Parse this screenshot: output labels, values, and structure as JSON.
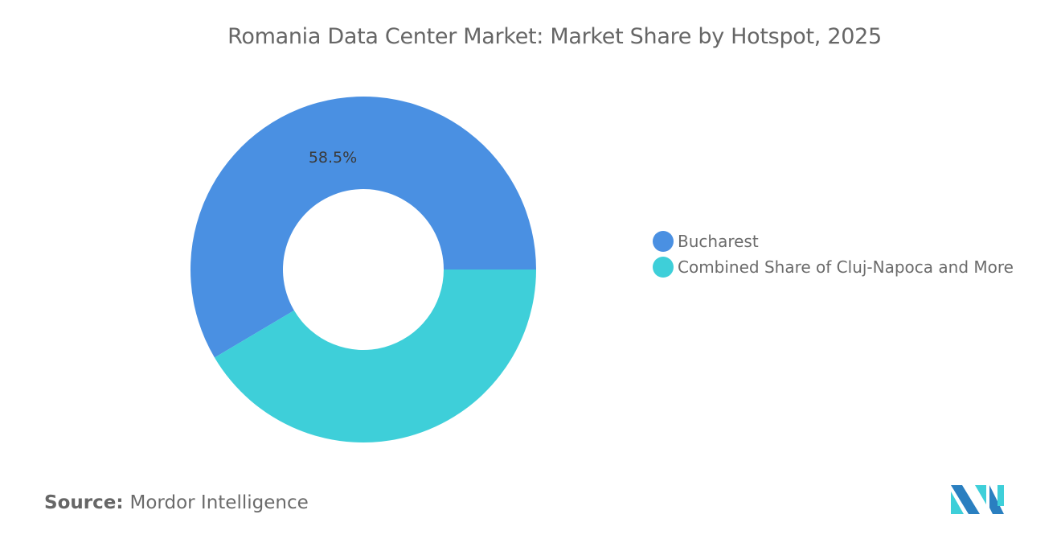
{
  "chart_data": {
    "type": "pie",
    "donut": true,
    "title": "Romania Data Center Market: Market Share by Hotspot, 2025",
    "categories": [
      "Bucharest",
      "Combined Share of Cluj-Napoca and More"
    ],
    "values": [
      58.5,
      41.5
    ],
    "data_labels": [
      "58.5%",
      ""
    ],
    "colors": [
      "#4a90e2",
      "#3ecfd9"
    ],
    "legend_placement": "right"
  },
  "source": {
    "label": "Source:",
    "value": "Mordor Intelligence"
  },
  "logo": {
    "name": "mordor-intelligence-logo",
    "colors": [
      "#2a7fc0",
      "#3ecfd9"
    ]
  }
}
